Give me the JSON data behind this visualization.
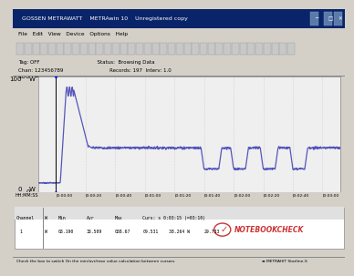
{
  "win_bg": "#d4d0c8",
  "titlebar_bg": "#0a246a",
  "titlebar_fg": "#ffffff",
  "title_text": "GOSSEN METRAWATT    METRAwin 10    Unregistered copy",
  "menu_text": "File   Edit   View   Device   Options   Help",
  "info_line1": "Tag: OFF                                    Status:  Browsing Data",
  "info_line2": "Chan: 123456789                             Records: 197  Interv: 1.0",
  "plot_bg": "#f0f0f0",
  "plot_border": "#888888",
  "grid_color": "#bbbbcc",
  "line_color": "#5555bb",
  "line_width": 0.9,
  "ylim": [
    0,
    100
  ],
  "xlim_seconds": [
    -12,
    192
  ],
  "x_ticks_seconds": [
    0,
    20,
    40,
    60,
    80,
    100,
    120,
    140,
    160,
    180
  ],
  "x_tick_labels": [
    "0:00:00",
    "0:00:20",
    "0:00:40",
    "0:01:00",
    "0:01:20",
    "0:01:40",
    "0:02:00",
    "0:02:20",
    "0:02:40",
    "0:03:00"
  ],
  "y_ticks": [
    0,
    100
  ],
  "y_tick_labels": [
    "0",
    "100"
  ],
  "y_label": "W",
  "hhmm_label": "HH:MM:SS",
  "cursor_x": 0,
  "baseline": 8.0,
  "peak": 88.7,
  "steady": 38.2,
  "dip_low": 20.0,
  "spike_rise_start": 3,
  "spike_rise_end": 7,
  "spike_peak_start": 7,
  "spike_peak_end": 12,
  "spike_fall_end": 22,
  "steady_reached": 24,
  "dip_events": [
    {
      "start": 98,
      "bottom_start": 100,
      "bottom_end": 110,
      "rise_end": 112
    },
    {
      "start": 118,
      "bottom_start": 120,
      "bottom_end": 128,
      "rise_end": 130
    },
    {
      "start": 138,
      "bottom_start": 140,
      "bottom_end": 148,
      "rise_end": 150
    },
    {
      "start": 158,
      "bottom_start": 160,
      "bottom_end": 168,
      "rise_end": 170
    }
  ],
  "table_header": "Channel   W     Min          Avr           Max         Curs: s 0:03:15 (=03:10)",
  "table_row": "  1       W     08.190      38.509       088.67       09.531      38.264  W      29.733",
  "status_bar": "Check the box to switch On the min/avr/max value calculation between cursors",
  "status_right": "METRAHIT Starline-S"
}
